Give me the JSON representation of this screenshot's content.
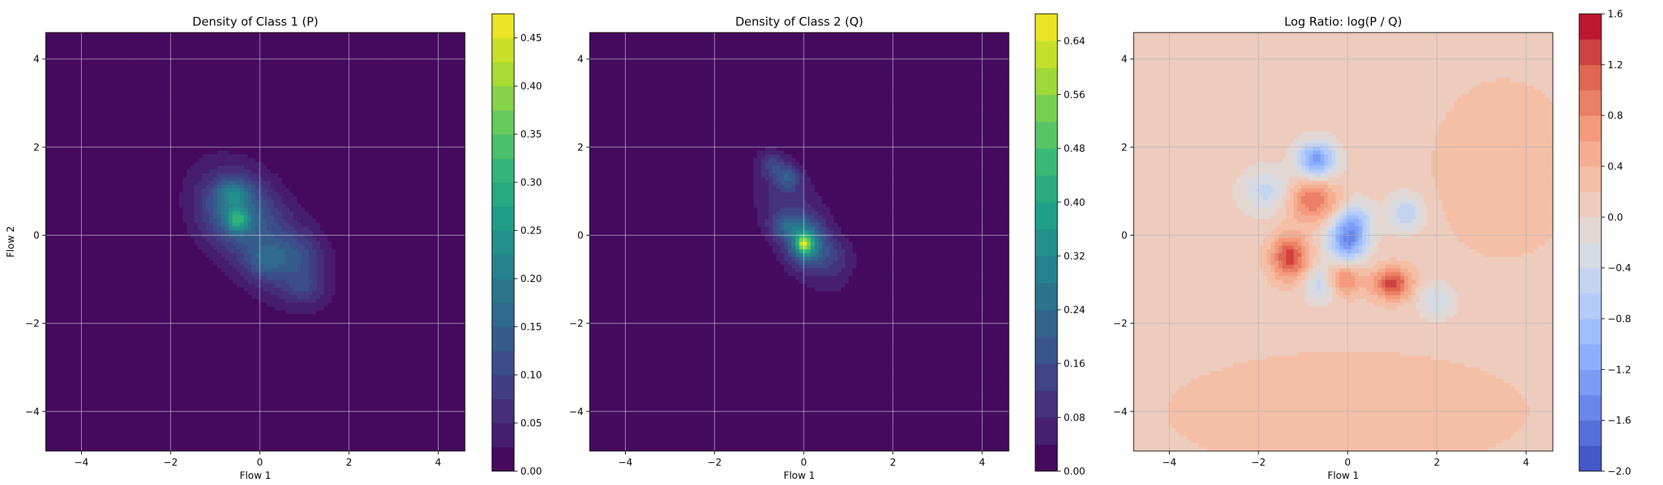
{
  "chart_data": [
    {
      "type": "heatmap",
      "title": "Density of Class 1 (P)",
      "xlabel": "Flow 1",
      "ylabel": "Flow 2",
      "xlim": [
        -4.8,
        4.6
      ],
      "ylim": [
        -4.9,
        4.6
      ],
      "xticks": [
        -4,
        -2,
        0,
        2,
        4
      ],
      "yticks": [
        -4,
        -2,
        0,
        2,
        4
      ],
      "grid": true,
      "colormap": "viridis",
      "background_value": 0.0,
      "colorbar": {
        "vmin": 0.0,
        "vmax": 0.475,
        "levels": 19,
        "ticks": [
          0.0,
          0.05,
          0.1,
          0.15,
          0.2,
          0.25,
          0.3,
          0.35,
          0.4,
          0.45
        ],
        "tick_labels": [
          "0.00",
          "0.05",
          "0.10",
          "0.15",
          "0.20",
          "0.25",
          "0.30",
          "0.35",
          "0.40",
          "0.45"
        ]
      },
      "blobs": [
        {
          "x": 0.0,
          "y": 0.0,
          "sx": 0.95,
          "sy": 1.05,
          "rho": -0.55,
          "amp": 0.1
        },
        {
          "x": -0.6,
          "y": 0.6,
          "sx": 0.55,
          "sy": 0.55,
          "rho": 0,
          "amp": 0.09
        },
        {
          "x": -0.5,
          "y": 0.35,
          "sx": 0.18,
          "sy": 0.18,
          "rho": 0,
          "amp": 0.16
        },
        {
          "x": -0.6,
          "y": 0.95,
          "sx": 0.25,
          "sy": 0.2,
          "rho": 0,
          "amp": 0.1
        },
        {
          "x": 0.8,
          "y": -0.5,
          "sx": 0.45,
          "sy": 0.4,
          "rho": 0,
          "amp": 0.06
        },
        {
          "x": 0.1,
          "y": -0.6,
          "sx": 0.3,
          "sy": 0.3,
          "rho": 0,
          "amp": 0.06
        },
        {
          "x": 1.0,
          "y": -1.2,
          "sx": 0.3,
          "sy": 0.25,
          "rho": 0,
          "amp": 0.05
        }
      ]
    },
    {
      "type": "heatmap",
      "title": "Density of Class 2 (Q)",
      "xlabel": "Flow 1",
      "ylabel": "",
      "xlim": [
        -4.8,
        4.6
      ],
      "ylim": [
        -4.9,
        4.6
      ],
      "xticks": [
        -4,
        -2,
        0,
        2,
        4
      ],
      "yticks": [
        -4,
        -2,
        0,
        2,
        4
      ],
      "grid": true,
      "colormap": "viridis",
      "background_value": 0.0,
      "colorbar": {
        "vmin": 0.0,
        "vmax": 0.68,
        "levels": 17,
        "ticks": [
          0.0,
          0.08,
          0.16,
          0.24,
          0.32,
          0.4,
          0.48,
          0.56,
          0.64
        ],
        "tick_labels": [
          "0.00",
          "0.08",
          "0.16",
          "0.24",
          "0.32",
          "0.40",
          "0.48",
          "0.56",
          "0.64"
        ]
      },
      "blobs": [
        {
          "x": -0.1,
          "y": 0.2,
          "sx": 0.7,
          "sy": 1.0,
          "rho": -0.6,
          "amp": 0.12
        },
        {
          "x": 0.05,
          "y": -0.2,
          "sx": 0.25,
          "sy": 0.3,
          "rho": 0,
          "amp": 0.3
        },
        {
          "x": 0.0,
          "y": -0.2,
          "sx": 0.1,
          "sy": 0.12,
          "rho": 0,
          "amp": 0.25
        },
        {
          "x": -0.35,
          "y": 1.3,
          "sx": 0.2,
          "sy": 0.2,
          "rho": 0,
          "amp": 0.14
        },
        {
          "x": -0.7,
          "y": 1.6,
          "sx": 0.2,
          "sy": 0.2,
          "rho": 0,
          "amp": 0.1
        },
        {
          "x": -0.4,
          "y": 0.2,
          "sx": 0.25,
          "sy": 0.2,
          "rho": 0,
          "amp": 0.12
        },
        {
          "x": 0.7,
          "y": -0.5,
          "sx": 0.3,
          "sy": 0.3,
          "rho": 0,
          "amp": 0.06
        }
      ]
    },
    {
      "type": "heatmap",
      "title": "Log Ratio: log(P / Q)",
      "xlabel": "Flow 1",
      "ylabel": "",
      "xlim": [
        -4.8,
        4.6
      ],
      "ylim": [
        -4.9,
        4.6
      ],
      "xticks": [
        -4,
        -2,
        0,
        2,
        4
      ],
      "yticks": [
        -4,
        -2,
        0,
        2,
        4
      ],
      "grid": true,
      "colormap": "coolwarm",
      "background_value": 0.1,
      "colorbar": {
        "vmin": -2.0,
        "vmax": 1.6,
        "levels": 18,
        "ticks": [
          -2.0,
          -1.6,
          -1.2,
          -0.8,
          -0.4,
          0.0,
          0.4,
          0.8,
          1.2,
          1.6
        ],
        "tick_labels": [
          "−2.0",
          "−1.6",
          "−1.2",
          "−0.8",
          "−0.4",
          "0.0",
          "0.4",
          "0.8",
          "1.2",
          "1.6"
        ]
      },
      "blobs": [
        {
          "x": -0.7,
          "y": 1.7,
          "sx": 0.3,
          "sy": 0.3,
          "rho": 0,
          "amp": -1.4
        },
        {
          "x": 0.0,
          "y": -0.1,
          "sx": 0.3,
          "sy": 0.35,
          "rho": 0,
          "amp": -1.5
        },
        {
          "x": -1.3,
          "y": -0.5,
          "sx": 0.3,
          "sy": 0.35,
          "rho": 0,
          "amp": 1.2
        },
        {
          "x": 1.0,
          "y": -1.1,
          "sx": 0.3,
          "sy": 0.25,
          "rho": 0,
          "amp": 1.2
        },
        {
          "x": -0.8,
          "y": 0.8,
          "sx": 0.4,
          "sy": 0.35,
          "rho": 0,
          "amp": 0.9
        },
        {
          "x": -0.1,
          "y": -1.0,
          "sx": 0.3,
          "sy": 0.25,
          "rho": 0,
          "amp": 0.8
        },
        {
          "x": 1.3,
          "y": 0.5,
          "sx": 0.3,
          "sy": 0.3,
          "rho": 0,
          "amp": -0.7
        },
        {
          "x": -1.8,
          "y": 1.0,
          "sx": 0.4,
          "sy": 0.35,
          "rho": 0,
          "amp": -0.6
        },
        {
          "x": -0.6,
          "y": -1.1,
          "sx": 0.25,
          "sy": 0.3,
          "rho": 0,
          "amp": -0.7
        },
        {
          "x": 2.0,
          "y": -1.5,
          "sx": 0.3,
          "sy": 0.3,
          "rho": 0,
          "amp": -0.5
        },
        {
          "x": 0.2,
          "y": 0.4,
          "sx": 0.25,
          "sy": 0.3,
          "rho": 0,
          "amp": -0.6
        },
        {
          "x": 0.0,
          "y": -4.0,
          "sx": 3.0,
          "sy": 1.0,
          "rho": 0,
          "amp": 0.25
        },
        {
          "x": 3.5,
          "y": 1.5,
          "sx": 1.2,
          "sy": 1.5,
          "rho": 0,
          "amp": 0.25
        }
      ]
    }
  ]
}
